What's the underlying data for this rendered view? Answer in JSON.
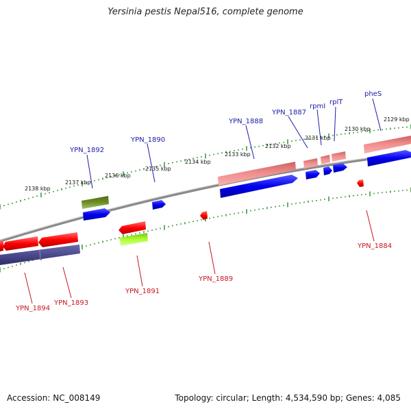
{
  "title": "Yersinia pestis Nepal516, complete genome",
  "footer": {
    "accession": "Accession: NC_008149",
    "summary": "Topology: circular; Length: 4,534,590 bp; Genes: 4,085"
  },
  "scale_labels": [
    "2138 kbp",
    "2137 kbp",
    "2136 kbp",
    "2135 kbp",
    "2134 kbp",
    "2133 kbp",
    "2132 kbp",
    "2131 kbp",
    "2130 kbp",
    "2129 kbp"
  ],
  "gene_labels_top": [
    "YPN_1892",
    "YPN_1890",
    "YPN_1888",
    "YPN_1887",
    "rpmI",
    "rplT",
    "pheS"
  ],
  "gene_labels_bottom": [
    "YPN_1894",
    "YPN_1893",
    "YPN_1891",
    "YPN_1889",
    "YPN_1884"
  ],
  "colors": {
    "cds_forward": "#0000ff",
    "cds_reverse": "#ff0000",
    "gene_forward": "#e88080",
    "gene_reverse": "#4a4a8e",
    "rrna_forward": "#6b8e23",
    "rrna_reverse": "#adff2f",
    "backbone": "#888888",
    "ticks": "#1e8c1e"
  }
}
